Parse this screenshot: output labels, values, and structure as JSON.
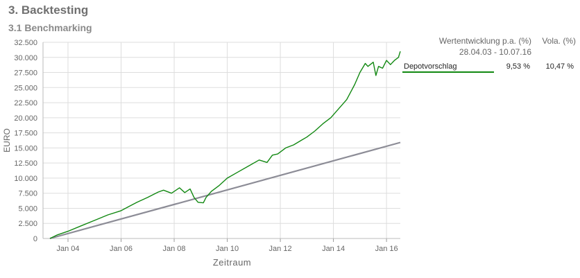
{
  "heading": "3. Backtesting",
  "subheading": "3.1 Benchmarking",
  "legend": {
    "col_perf": "Wertentwicklung p.a. (%)",
    "col_vol": "Vola. (%)",
    "period": "28.04.03 - 10.07.16",
    "rows": [
      {
        "name": "Depotvorschlag",
        "perf": "9,53 %",
        "vol": "10,47 %",
        "color": "#118811"
      }
    ]
  },
  "colors": {
    "depot": "#118811",
    "benchmark": "#8c8c96",
    "grid": "#dddddd",
    "axis_text": "#666666"
  },
  "chart_data": {
    "type": "line",
    "title": "",
    "xlabel": "Zeitraum",
    "ylabel": "EURO",
    "xlim": [
      2003.32,
      2016.52
    ],
    "ylim": [
      0,
      32500
    ],
    "yticks": [
      "0",
      "2.500",
      "5.000",
      "7.500",
      "10.000",
      "12.500",
      "15.000",
      "17.500",
      "20.000",
      "22.500",
      "25.000",
      "27.500",
      "30.000",
      "32.500"
    ],
    "ytick_values": [
      0,
      2500,
      5000,
      7500,
      10000,
      12500,
      15000,
      17500,
      20000,
      22500,
      25000,
      27500,
      30000,
      32500
    ],
    "xticks": [
      "Jan 04",
      "Jan 06",
      "Jan 08",
      "Jan 10",
      "Jan 12",
      "Jan 14",
      "Jan 16"
    ],
    "xtick_values": [
      2004,
      2006,
      2008,
      2010,
      2012,
      2014,
      2016
    ],
    "grid": true,
    "legend_position": "right",
    "series": [
      {
        "name": "Depotvorschlag",
        "color": "#118811",
        "x": [
          2003.32,
          2003.6,
          2004.0,
          2004.5,
          2005.0,
          2005.5,
          2006.0,
          2006.3,
          2006.6,
          2007.0,
          2007.4,
          2007.6,
          2007.9,
          2008.2,
          2008.4,
          2008.6,
          2008.75,
          2008.9,
          2009.1,
          2009.2,
          2009.4,
          2009.7,
          2010.0,
          2010.4,
          2010.8,
          2011.2,
          2011.5,
          2011.7,
          2011.9,
          2012.2,
          2012.5,
          2012.8,
          2013.0,
          2013.3,
          2013.6,
          2013.9,
          2014.2,
          2014.5,
          2014.8,
          2015.0,
          2015.2,
          2015.3,
          2015.5,
          2015.6,
          2015.7,
          2015.85,
          2016.0,
          2016.15,
          2016.3,
          2016.45,
          2016.52
        ],
        "y": [
          0,
          600,
          1200,
          2100,
          3000,
          3900,
          4600,
          5300,
          6000,
          6800,
          7700,
          8000,
          7500,
          8400,
          7600,
          8200,
          6800,
          6000,
          5900,
          6800,
          7800,
          8800,
          10000,
          11000,
          12000,
          13000,
          12600,
          13800,
          14000,
          15000,
          15500,
          16300,
          16800,
          17800,
          19000,
          20000,
          21500,
          23000,
          25500,
          27500,
          29000,
          28500,
          29200,
          27000,
          28500,
          28200,
          29500,
          28800,
          29500,
          30000,
          31000
        ]
      },
      {
        "name": "",
        "color": "#8c8c96",
        "x": [
          2003.32,
          2016.52
        ],
        "y": [
          0,
          15900
        ]
      }
    ]
  }
}
